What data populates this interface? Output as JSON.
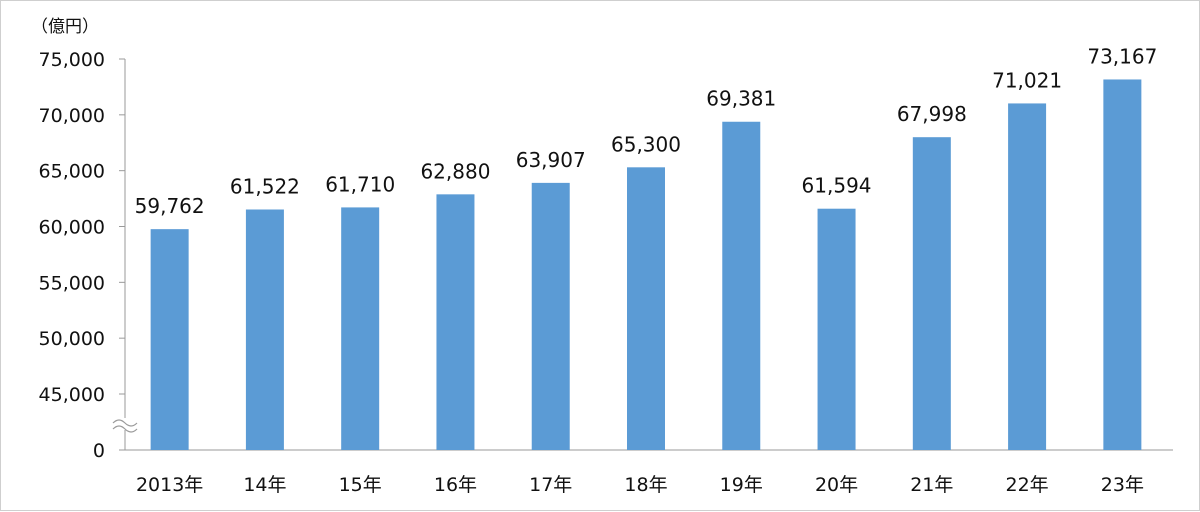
{
  "chart_data": {
    "type": "bar",
    "ylabel": "（億円）",
    "categories": [
      "2013年",
      "14年",
      "15年",
      "16年",
      "17年",
      "18年",
      "19年",
      "20年",
      "21年",
      "22年",
      "23年"
    ],
    "values": [
      59762,
      61522,
      61710,
      62880,
      63907,
      65300,
      69381,
      61594,
      67998,
      71021,
      73167
    ],
    "value_labels": [
      "59,762",
      "61,522",
      "61,710",
      "62,880",
      "63,907",
      "65,300",
      "69,381",
      "61,594",
      "67,998",
      "71,021",
      "73,167"
    ],
    "y_tick_labels": [
      "0",
      "45,000",
      "50,000",
      "55,000",
      "60,000",
      "65,000",
      "70,000",
      "75,000"
    ],
    "y_ticks": [
      0,
      45000,
      50000,
      55000,
      60000,
      65000,
      70000,
      75000
    ],
    "ylim": [
      0,
      75000
    ],
    "axis_break": "between 0 and 45,000",
    "grid": false,
    "bar_color": "#5b9bd5"
  }
}
